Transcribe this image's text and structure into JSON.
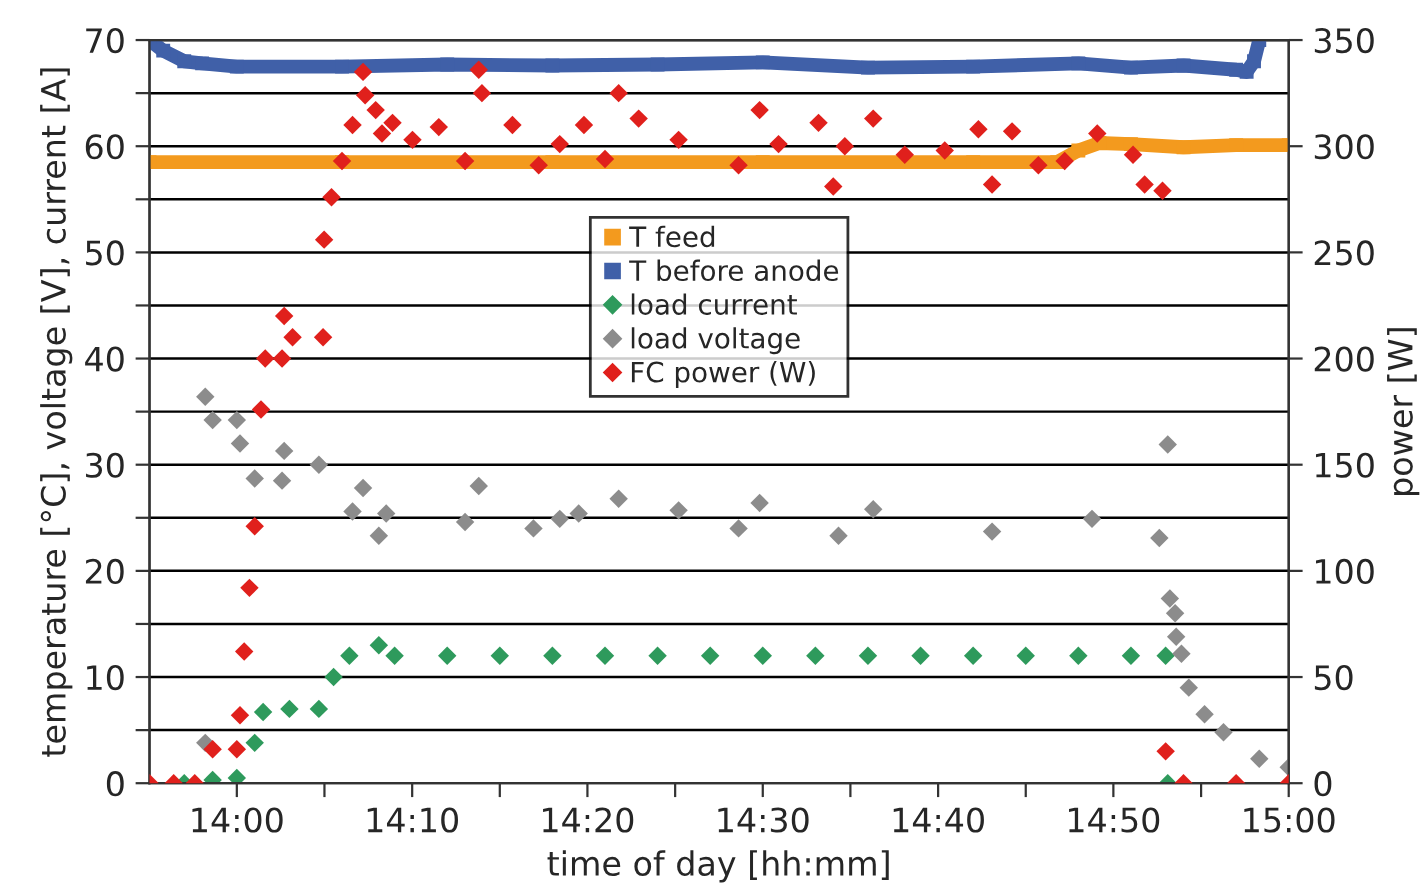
{
  "chart_data": {
    "type": "scatter",
    "xlabel": "time of day [hh:mm]",
    "ylabel": "temperature [°C], voltage [V], current [A]",
    "y2label": "power [W]",
    "xlim": [
      13.917,
      15.0
    ],
    "xticks": [
      {
        "value": 14.0,
        "label": "14:00"
      },
      {
        "value": 14.0833,
        "label": null
      },
      {
        "value": 14.1667,
        "label": "14:10"
      },
      {
        "value": 14.25,
        "label": null
      },
      {
        "value": 14.3333,
        "label": "14:20"
      },
      {
        "value": 14.4167,
        "label": null
      },
      {
        "value": 14.5,
        "label": "14:30"
      },
      {
        "value": 14.5833,
        "label": null
      },
      {
        "value": 14.6667,
        "label": "14:40"
      },
      {
        "value": 14.75,
        "label": null
      },
      {
        "value": 14.8333,
        "label": "14:50"
      },
      {
        "value": 14.9167,
        "label": null
      },
      {
        "value": 15.0,
        "label": "15:00"
      }
    ],
    "ylim": [
      0,
      70
    ],
    "yticks": [
      0,
      {
        "value": 5,
        "label": null
      },
      10,
      {
        "value": 15,
        "label": null
      },
      20,
      {
        "value": 25,
        "label": null
      },
      30,
      {
        "value": 35,
        "label": null
      },
      40,
      {
        "value": 45,
        "label": null
      },
      50,
      {
        "value": 55,
        "label": null
      },
      60,
      {
        "value": 65,
        "label": null
      },
      70
    ],
    "y2lim": [
      0,
      350
    ],
    "y2ticks": [
      0,
      50,
      100,
      150,
      200,
      250,
      300,
      350
    ],
    "grid": "y",
    "legend": "top",
    "series": [
      {
        "name": "T feed",
        "type": "line",
        "marker": "square",
        "color": "#f39a1e",
        "x": [
          13.917,
          14.1,
          14.3,
          14.5,
          14.7,
          14.78,
          14.8,
          14.82,
          14.85,
          14.9,
          14.95,
          15.0
        ],
        "values": [
          58.5,
          58.5,
          58.5,
          58.5,
          58.5,
          58.5,
          59.6,
          60.3,
          60.2,
          59.9,
          60.1,
          60.1
        ]
      },
      {
        "name": "T before anode",
        "type": "line",
        "marker": "square",
        "color": "#4060a8",
        "x": [
          13.917,
          13.93,
          13.95,
          13.967,
          14.0,
          14.1,
          14.2,
          14.3,
          14.4,
          14.5,
          14.6,
          14.7,
          14.8,
          14.85,
          14.9,
          14.95,
          14.96,
          14.967,
          14.972
        ],
        "values": [
          70,
          69,
          68,
          67.8,
          67.5,
          67.5,
          67.7,
          67.6,
          67.7,
          67.9,
          67.4,
          67.5,
          67.8,
          67.4,
          67.6,
          67.2,
          67,
          68,
          70
        ]
      },
      {
        "name": "load current",
        "marker": "diamond",
        "color": "#2e9a5c",
        "x": [
          13.95,
          13.977,
          14.0,
          14.017,
          14.025,
          14.05,
          14.078,
          14.092,
          14.107,
          14.135,
          14.15,
          14.2,
          14.25,
          14.3,
          14.35,
          14.4,
          14.45,
          14.5,
          14.55,
          14.6,
          14.65,
          14.7,
          14.75,
          14.8,
          14.85,
          14.883,
          14.885
        ],
        "values": [
          0,
          0.3,
          0.5,
          3.8,
          6.7,
          7,
          7,
          10,
          12,
          13,
          12,
          12,
          12,
          12,
          12,
          12,
          12,
          12,
          12,
          12,
          12,
          12,
          12,
          12,
          12,
          12,
          0
        ]
      },
      {
        "name": "load voltage",
        "marker": "diamond",
        "color": "#8c8c8c",
        "x": [
          13.97,
          13.97,
          13.977,
          14.0,
          14.003,
          14.017,
          14.043,
          14.045,
          14.078,
          14.11,
          14.12,
          14.135,
          14.142,
          14.217,
          14.23,
          14.282,
          14.307,
          14.325,
          14.363,
          14.42,
          14.477,
          14.497,
          14.572,
          14.605,
          14.718,
          14.813,
          14.877,
          14.885,
          14.887,
          14.892,
          14.893,
          14.898,
          14.905,
          14.92,
          14.938,
          14.972,
          15.0
        ],
        "values": [
          3.8,
          36.4,
          34.2,
          34.2,
          32,
          28.7,
          28.5,
          31.3,
          30,
          25.6,
          27.8,
          23.3,
          25.4,
          24.6,
          28,
          24,
          24.9,
          25.4,
          26.8,
          25.7,
          24,
          26.4,
          23.3,
          25.8,
          23.7,
          24.9,
          23.1,
          31.9,
          17.4,
          16,
          13.8,
          12.2,
          9,
          6.5,
          4.8,
          2.3,
          1.5
        ]
      },
      {
        "name": "FC power (W)",
        "marker": "diamond",
        "axis": "y2",
        "color": "#e0201c",
        "x": [
          13.917,
          13.94,
          13.96,
          13.977,
          14.0,
          14.003,
          14.007,
          14.012,
          14.017,
          14.023,
          14.027,
          14.043,
          14.045,
          14.053,
          14.082,
          14.083,
          14.09,
          14.1,
          14.11,
          14.12,
          14.122,
          14.132,
          14.138,
          14.148,
          14.167,
          14.192,
          14.217,
          14.23,
          14.233,
          14.262,
          14.287,
          14.307,
          14.33,
          14.35,
          14.363,
          14.382,
          14.42,
          14.477,
          14.497,
          14.515,
          14.553,
          14.567,
          14.578,
          14.605,
          14.635,
          14.673,
          14.705,
          14.718,
          14.737,
          14.762,
          14.787,
          14.818,
          14.852,
          14.863,
          14.88,
          14.883,
          14.9,
          14.95,
          15.0
        ],
        "values": [
          0,
          0,
          0,
          16,
          16,
          32,
          62,
          92,
          121,
          176,
          200,
          200,
          220,
          210,
          210,
          256,
          276,
          293,
          310,
          335,
          324,
          317,
          306,
          311,
          303,
          309,
          293,
          336,
          325,
          310,
          291,
          301,
          310,
          294,
          325,
          313,
          303,
          291,
          317,
          301,
          311,
          281,
          300,
          313,
          296,
          298,
          308,
          282,
          307,
          291,
          293,
          306,
          296,
          282,
          279,
          15,
          0,
          0,
          0
        ]
      }
    ]
  }
}
